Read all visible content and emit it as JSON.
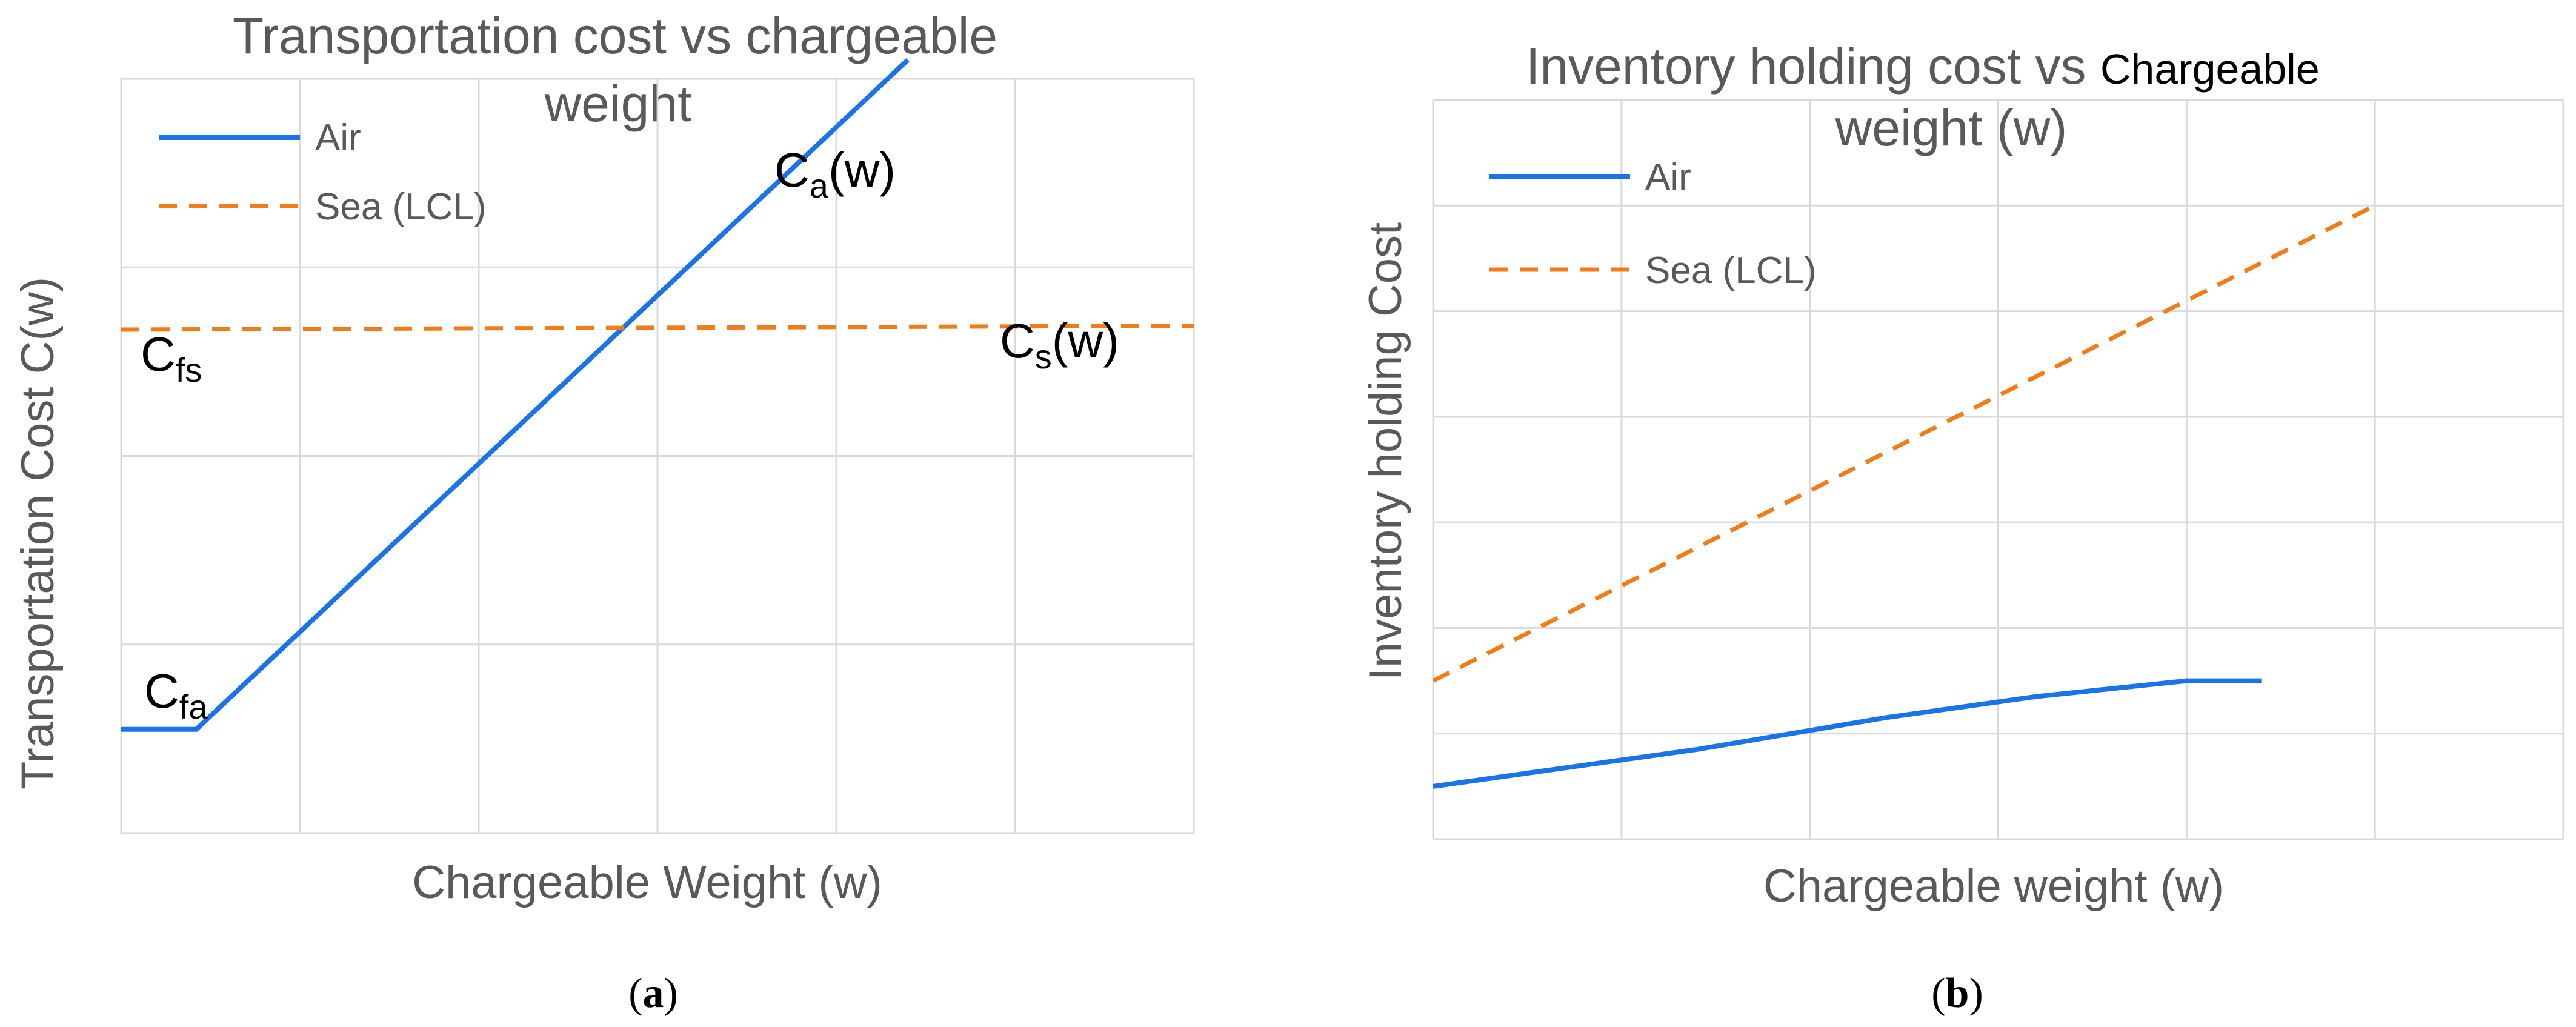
{
  "chart_data": [
    {
      "panel": "a",
      "type": "line",
      "title_line1": "Transportation cost vs chargeable",
      "title_line2": "weight",
      "xlabel": "Chargeable Weight  (w)",
      "ylabel": "Transportation Cost  C(w)",
      "caption": "a",
      "xlim": [
        0,
        6
      ],
      "ylim": [
        0,
        4
      ],
      "grid": true,
      "legend": "top-left",
      "series": [
        {
          "name": "Air",
          "color": "#1a73e8",
          "dash": "solid",
          "x": [
            0,
            0.42,
            4.4
          ],
          "y": [
            0.55,
            0.55,
            4.1
          ]
        },
        {
          "name": "Sea (LCL)",
          "color": "#f07d1a",
          "dash": "dashed",
          "x": [
            0,
            6
          ],
          "y": [
            2.67,
            2.69
          ]
        }
      ],
      "annotations": [
        {
          "main": "C",
          "sub": "a",
          "suffix": "(w)"
        },
        {
          "main": "C",
          "sub": "s",
          "suffix": "(w)"
        },
        {
          "main": "C",
          "sub": "fs",
          "suffix": ""
        },
        {
          "main": "C",
          "sub": "fa",
          "suffix": ""
        }
      ]
    },
    {
      "panel": "b",
      "type": "line",
      "title_line1": "Inventory  holding  cost vs ",
      "title_line1_b": "Chargeable",
      "title_line2": "weight (w)",
      "xlabel": "Chargeable weight (w)",
      "ylabel": "Inventory  holding Cost",
      "caption": "b",
      "xlim": [
        0,
        6
      ],
      "ylim": [
        0,
        7
      ],
      "grid": true,
      "legend": "top-left",
      "series": [
        {
          "name": "Air",
          "color": "#1a73e8",
          "dash": "solid",
          "x": [
            0,
            0.6,
            1.4,
            2.4,
            3.2,
            4.0,
            4.4
          ],
          "y": [
            0.5,
            0.65,
            0.85,
            1.15,
            1.35,
            1.5,
            1.5
          ]
        },
        {
          "name": "Sea (LCL)",
          "color": "#f07d1a",
          "dash": "dashed",
          "x": [
            0,
            5
          ],
          "y": [
            1.5,
            6.0
          ]
        }
      ]
    }
  ]
}
